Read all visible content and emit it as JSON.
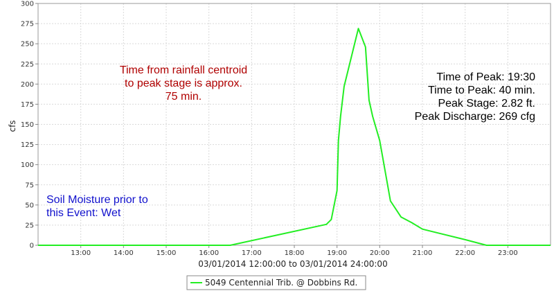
{
  "chart_data": {
    "type": "line",
    "ylabel": "cfs",
    "xlabel": "03/01/2014 12:00:00 to 03/01/2014 24:00:00",
    "x_range": [
      "12:00",
      "24:00"
    ],
    "ylim": [
      0,
      300
    ],
    "y_ticks": [
      0,
      25,
      50,
      75,
      100,
      125,
      150,
      175,
      200,
      225,
      250,
      275,
      300
    ],
    "x_ticks": [
      "13:00",
      "14:00",
      "15:00",
      "16:00",
      "17:00",
      "18:00",
      "19:00",
      "20:00",
      "21:00",
      "22:00",
      "23:00"
    ],
    "grid": true,
    "legend_position": "bottom",
    "series": [
      {
        "name": "5049 Centennial Trib. @ Dobbins Rd.",
        "color": "#22ee22",
        "x": [
          "12:00",
          "16:30",
          "18:45",
          "18:52",
          "19:00",
          "19:02",
          "19:05",
          "19:10",
          "19:30",
          "19:40",
          "19:45",
          "19:50",
          "20:00",
          "20:15",
          "20:30",
          "20:45",
          "21:00",
          "22:00",
          "22:30",
          "24:00"
        ],
        "y": [
          0,
          0,
          26,
          32,
          68,
          130,
          160,
          197,
          269,
          246,
          180,
          160,
          130,
          55,
          35,
          28,
          20,
          7,
          0,
          0
        ]
      }
    ],
    "annotations": {
      "centroid": [
        "Time from rainfall centroid",
        "to peak stage is approx.",
        "75 min."
      ],
      "peak_info": [
        "Time of Peak: 19:30",
        "Time to Peak: 40 min.",
        "Peak Stage: 2.82 ft.",
        "Peak Discharge: 269 cfg"
      ],
      "soil": [
        "Soil Moisture prior to",
        "this Event: Wet"
      ]
    }
  },
  "colors": {
    "centroid_text": "#b00000",
    "peak_text": "#000000",
    "soil_text": "#1010cc",
    "grid": "#d9d9d9",
    "axis": "#888888"
  }
}
